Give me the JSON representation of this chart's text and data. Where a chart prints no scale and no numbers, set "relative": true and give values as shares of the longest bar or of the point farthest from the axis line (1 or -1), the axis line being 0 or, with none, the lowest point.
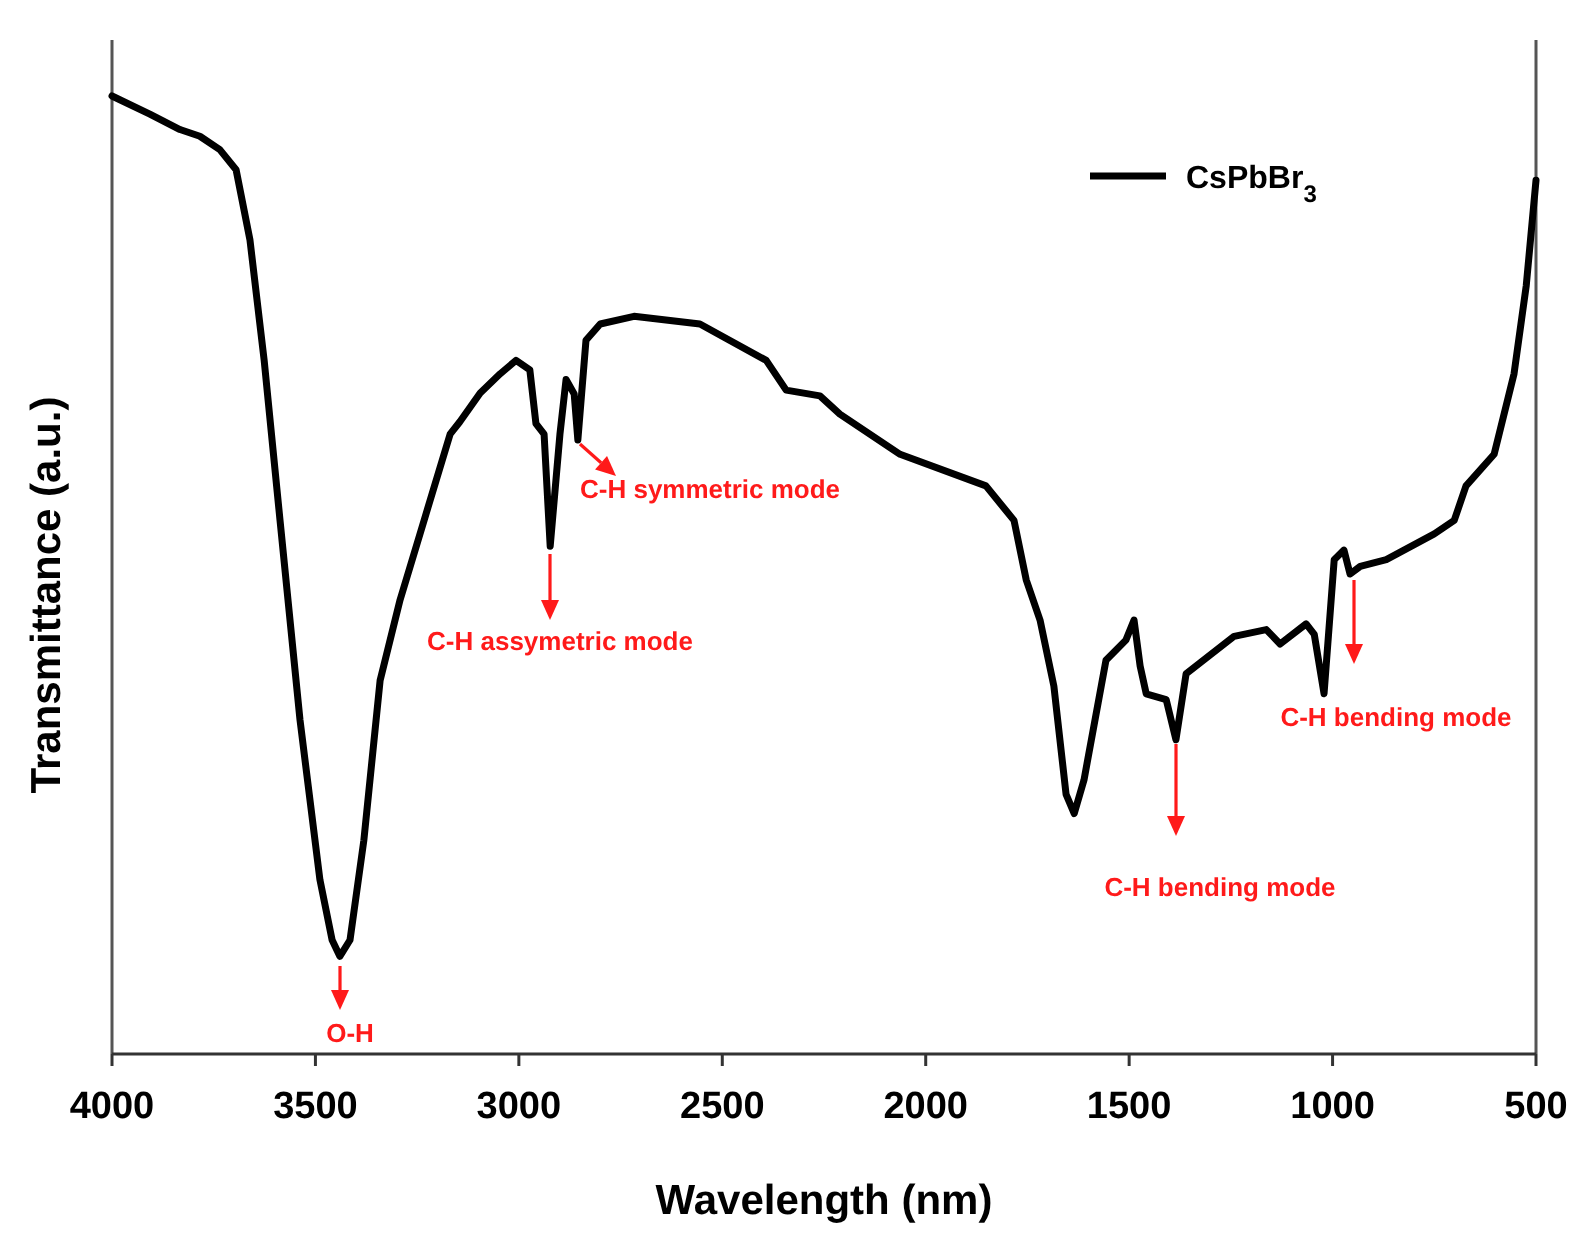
{
  "chart_data": {
    "type": "line",
    "xlabel": "Wavelength (nm)",
    "ylabel": "Transmittance (a.u.)",
    "relative": true,
    "xlim": [
      4000,
      500
    ],
    "xticks": [
      4000,
      3500,
      3000,
      2500,
      2000,
      1500,
      1000,
      500
    ],
    "legend": "top right",
    "grid": false,
    "marker": "none",
    "line_style": "solid",
    "series": [
      {
        "name": "CsPbBr$_{3}$",
        "color": "#000000",
        "x": [
          4000,
          3907,
          3833,
          3784,
          3735,
          3695,
          3661,
          3626,
          3587,
          3538,
          3489,
          3459,
          3440,
          3415,
          3381,
          3341,
          3292,
          3233,
          3169,
          3145,
          3095,
          3046,
          3007,
          2973,
          2958,
          2938,
          2923,
          2899,
          2884,
          2864,
          2855,
          2835,
          2800,
          2717,
          2555,
          2392,
          2343,
          2260,
          2211,
          2063,
          1852,
          1783,
          1753,
          1719,
          1685,
          1655,
          1635,
          1611,
          1557,
          1508,
          1488,
          1473,
          1458,
          1409,
          1385,
          1360,
          1242,
          1163,
          1129,
          1065,
          1045,
          1021,
          996,
          972,
          957,
          932,
          868,
          750,
          701,
          672,
          603,
          554,
          524,
          500
        ],
        "values": [
          1.0,
          0.981,
          0.965,
          0.958,
          0.944,
          0.923,
          0.85,
          0.724,
          0.557,
          0.349,
          0.182,
          0.119,
          0.102,
          0.119,
          0.223,
          0.39,
          0.474,
          0.557,
          0.647,
          0.66,
          0.69,
          0.71,
          0.724,
          0.714,
          0.658,
          0.647,
          0.53,
          0.647,
          0.704,
          0.689,
          0.641,
          0.745,
          0.762,
          0.77,
          0.762,
          0.724,
          0.693,
          0.687,
          0.668,
          0.626,
          0.593,
          0.557,
          0.495,
          0.453,
          0.384,
          0.271,
          0.251,
          0.286,
          0.411,
          0.432,
          0.453,
          0.405,
          0.376,
          0.37,
          0.328,
          0.397,
          0.436,
          0.443,
          0.428,
          0.449,
          0.438,
          0.376,
          0.516,
          0.526,
          0.501,
          0.509,
          0.516,
          0.543,
          0.557,
          0.593,
          0.626,
          0.71,
          0.802,
          0.912
        ]
      }
    ],
    "annotations": [
      "O-H",
      "C-H assymetric mode",
      "C-H symmetric mode",
      "C-H bending mode",
      "C-H bending mode"
    ]
  }
}
